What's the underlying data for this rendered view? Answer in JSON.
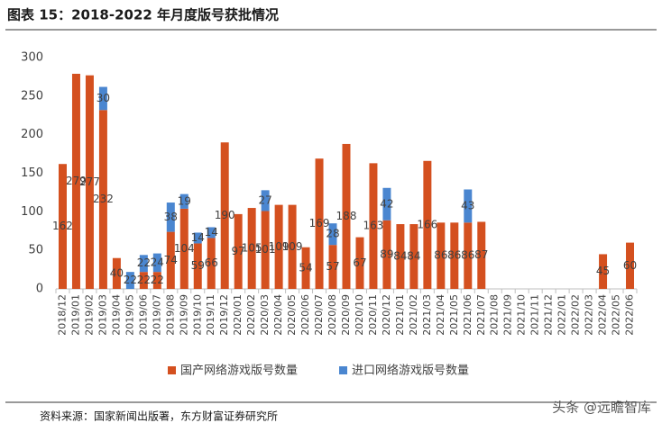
{
  "header": {
    "title": "图表 15：2018-2022 年月度版号获批情况"
  },
  "chart_data": {
    "type": "stacked-bar",
    "categories": [
      "2018/12",
      "2019/01",
      "2019/02",
      "2019/03",
      "2019/04",
      "2019/05",
      "2019/06",
      "2019/07",
      "2019/08",
      "2019/09",
      "2019/10",
      "2019/11",
      "2019/12",
      "2020/01",
      "2020/02",
      "2020/03",
      "2020/04",
      "2020/05",
      "2020/06",
      "2020/07",
      "2020/08",
      "2020/09",
      "2020/10",
      "2020/11",
      "2020/12",
      "2021/01",
      "2021/02",
      "2021/03",
      "2021/04",
      "2021/05",
      "2021/06",
      "2021/07",
      "2021/08",
      "2021/09",
      "2021/10",
      "2021/11",
      "2021/12",
      "2022/01",
      "2022/02",
      "2022/03",
      "2022/04",
      "2022/05",
      "2022/06"
    ],
    "series": [
      {
        "name": "国产网络游戏版号数量",
        "color": "#d4501f",
        "values": [
          162,
          279,
          277,
          232,
          40,
          null,
          22,
          22,
          74,
          104,
          59,
          66,
          190,
          97,
          105,
          101,
          109,
          109,
          54,
          169,
          57,
          188,
          67,
          163,
          89,
          84,
          84,
          166,
          86,
          86,
          86,
          87,
          null,
          null,
          null,
          null,
          null,
          null,
          null,
          null,
          45,
          null,
          60
        ]
      },
      {
        "name": "进口网络游戏版号数量",
        "color": "#4a86d0",
        "values": [
          null,
          null,
          null,
          30,
          null,
          22,
          22,
          24,
          38,
          19,
          14,
          14,
          null,
          null,
          null,
          27,
          null,
          null,
          null,
          null,
          28,
          null,
          null,
          null,
          42,
          null,
          null,
          null,
          null,
          null,
          43,
          null,
          null,
          null,
          null,
          null,
          null,
          null,
          null,
          null,
          null,
          null,
          null
        ]
      }
    ],
    "ylim": [
      0,
      300
    ],
    "yticks": [
      0,
      50,
      100,
      150,
      200,
      250,
      300
    ],
    "legend": "bottom"
  },
  "footer": {
    "source": "资料来源：国家新闻出版署，东方财富证券研究所",
    "watermark": "头条 @远瞻智库"
  }
}
